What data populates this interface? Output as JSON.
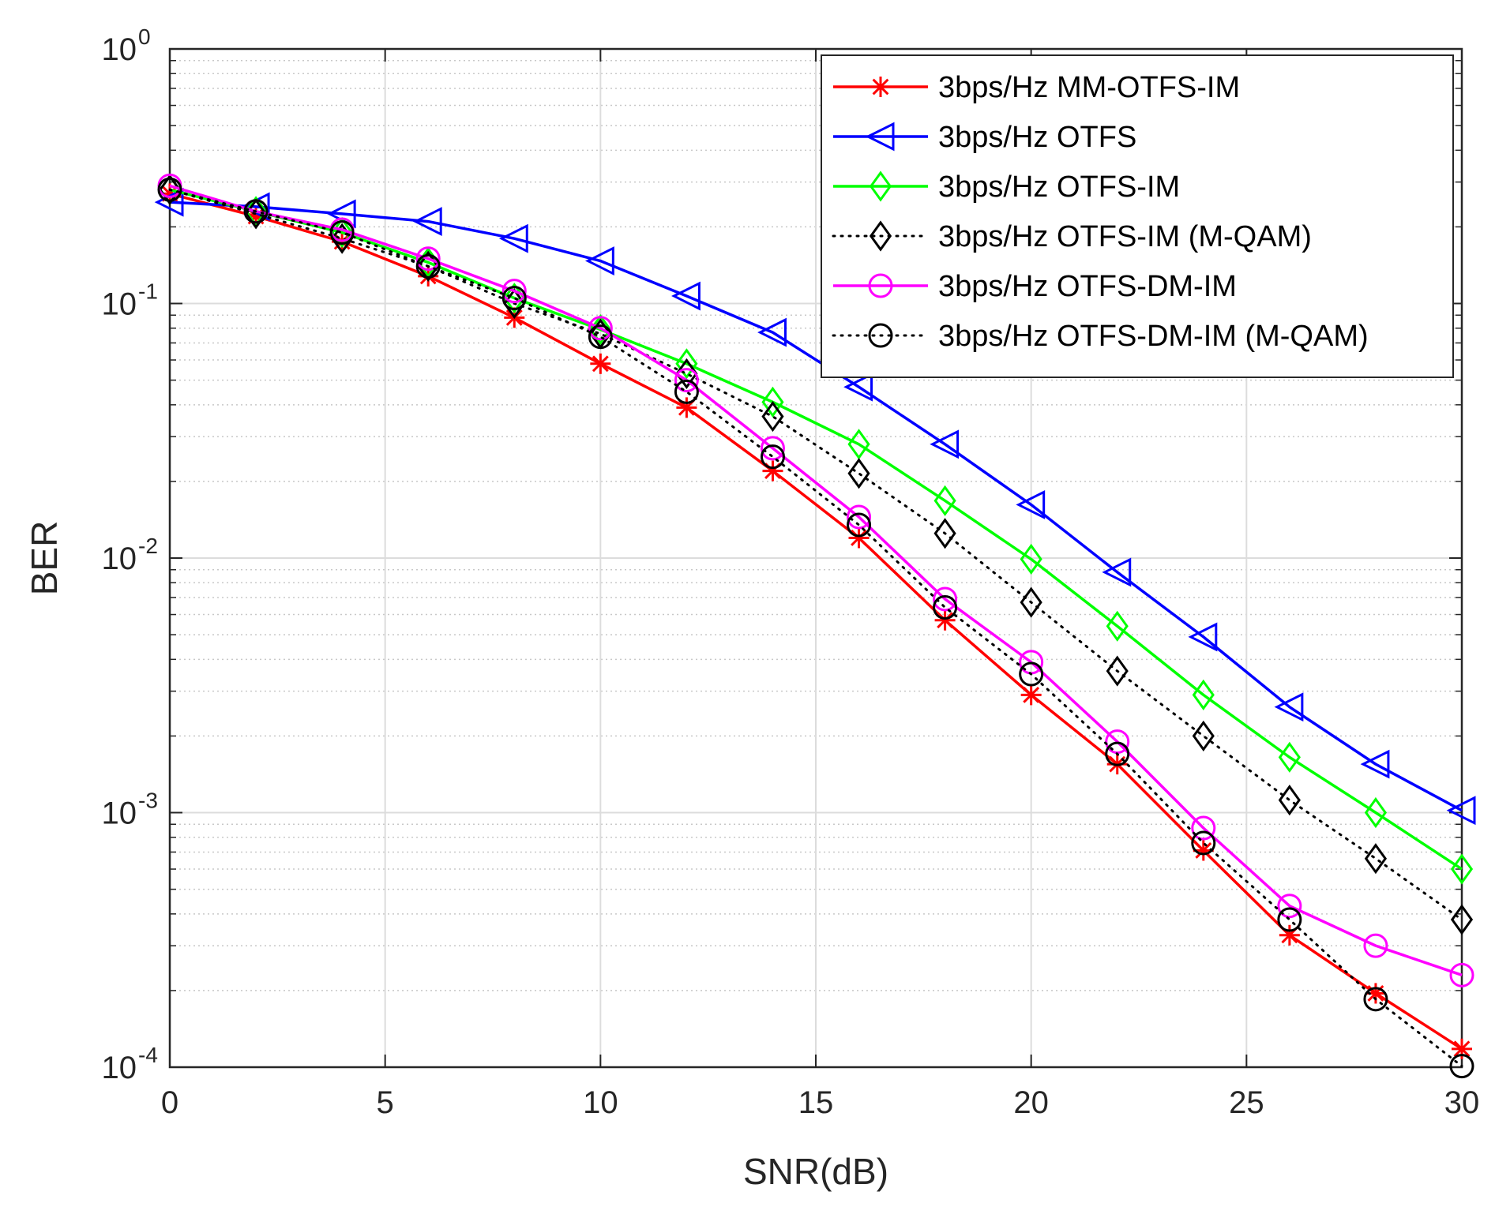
{
  "chart_data": {
    "type": "line",
    "title": "",
    "xlabel": "SNR(dB)",
    "ylabel": "BER",
    "xscale": "linear",
    "yscale": "log",
    "xlim": [
      0,
      30
    ],
    "ylim": [
      0.0001,
      1
    ],
    "grid": "on (major and minor)",
    "legend_position": "top-right",
    "x": [
      0,
      2,
      4,
      6,
      8,
      10,
      12,
      14,
      16,
      18,
      20,
      22,
      24,
      26,
      28,
      30
    ],
    "x_ticks": [
      {
        "value": 0,
        "label": "0"
      },
      {
        "value": 5,
        "label": "5"
      },
      {
        "value": 10,
        "label": "10"
      },
      {
        "value": 15,
        "label": "15"
      },
      {
        "value": 20,
        "label": "20"
      },
      {
        "value": 25,
        "label": "25"
      },
      {
        "value": 30,
        "label": "30"
      }
    ],
    "y_ticks": [
      {
        "value": 1,
        "base": "10",
        "exp": "0"
      },
      {
        "value": 0.1,
        "base": "10",
        "exp": "-1"
      },
      {
        "value": 0.01,
        "base": "10",
        "exp": "-2"
      },
      {
        "value": 0.001,
        "base": "10",
        "exp": "-3"
      },
      {
        "value": 0.0001,
        "base": "10",
        "exp": "-4"
      }
    ],
    "series": [
      {
        "name": "3bps/Hz MM-OTFS-IM",
        "color": "#ff0000",
        "line_style": "solid",
        "marker": "asterisk",
        "values": [
          0.27,
          0.22,
          0.175,
          0.128,
          0.088,
          0.058,
          0.039,
          0.022,
          0.012,
          0.0057,
          0.0029,
          0.00155,
          0.00071,
          0.00033,
          0.000195,
          0.000118
        ]
      },
      {
        "name": "3bps/Hz OTFS",
        "color": "#0000ff",
        "line_style": "solid",
        "marker": "triangle-left",
        "values": [
          0.25,
          0.24,
          0.225,
          0.21,
          0.18,
          0.147,
          0.107,
          0.077,
          0.047,
          0.028,
          0.0162,
          0.0088,
          0.0049,
          0.0026,
          0.00155,
          0.00102
        ]
      },
      {
        "name": "3bps/Hz OTFS-IM",
        "color": "#00ff00",
        "line_style": "solid",
        "marker": "diamond",
        "values": [
          0.28,
          0.23,
          0.19,
          0.145,
          0.105,
          0.079,
          0.058,
          0.041,
          0.028,
          0.0168,
          0.0099,
          0.0054,
          0.0029,
          0.00165,
          0.001,
          0.0006
        ]
      },
      {
        "name": "3bps/Hz OTFS-IM (M-QAM)",
        "color": "#000000",
        "line_style": "dotted",
        "marker": "diamond",
        "values": [
          0.28,
          0.225,
          0.18,
          0.14,
          0.1,
          0.076,
          0.053,
          0.036,
          0.0215,
          0.0125,
          0.0067,
          0.0036,
          0.002,
          0.00112,
          0.00066,
          0.00038
        ]
      },
      {
        "name": "3bps/Hz OTFS-DM-IM",
        "color": "#ff00ff",
        "line_style": "solid",
        "marker": "circle",
        "values": [
          0.29,
          0.23,
          0.195,
          0.15,
          0.112,
          0.08,
          0.05,
          0.027,
          0.0145,
          0.0069,
          0.0039,
          0.0019,
          0.00087,
          0.00043,
          0.0003,
          0.00023
        ]
      },
      {
        "name": "3bps/Hz OTFS-DM-IM (M-QAM)",
        "color": "#000000",
        "line_style": "dotted",
        "marker": "circle",
        "values": [
          0.28,
          0.23,
          0.19,
          0.14,
          0.105,
          0.074,
          0.045,
          0.025,
          0.0135,
          0.0064,
          0.0035,
          0.0017,
          0.00076,
          0.00038,
          0.000185,
          0.000101
        ]
      }
    ]
  }
}
